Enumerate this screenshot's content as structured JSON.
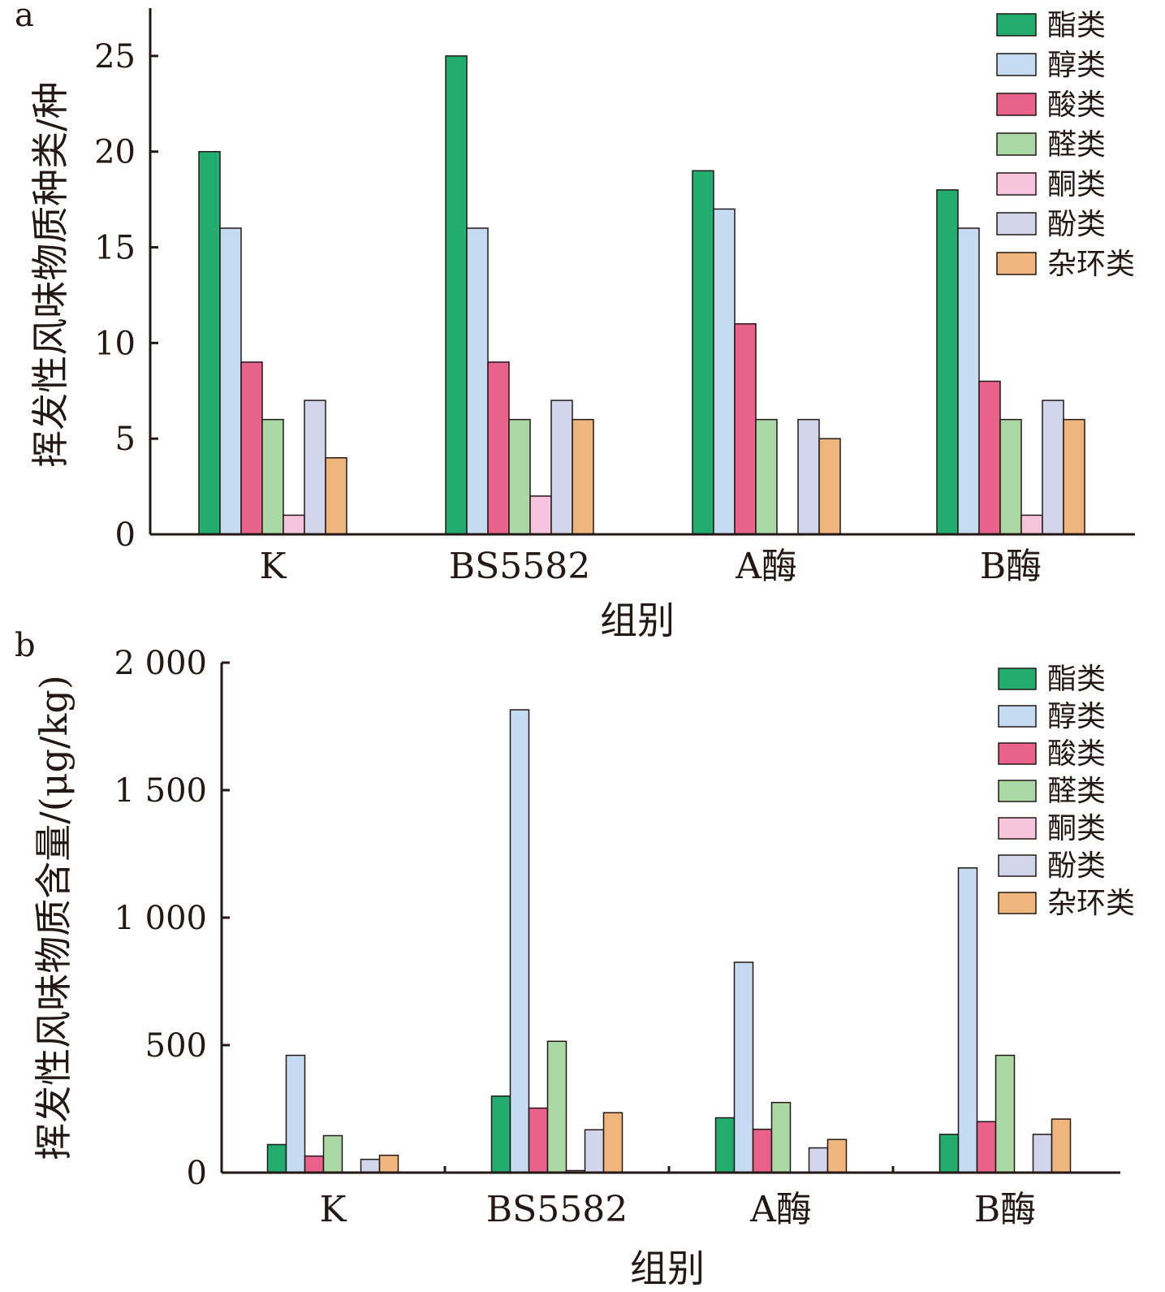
{
  "chart_data": [
    {
      "type": "bar",
      "panel_label": "a",
      "title": "",
      "xlabel": "组别",
      "ylabel": "挥发性风味物质种类/种",
      "categories": [
        "K",
        "BS5582",
        "A酶",
        "B酶"
      ],
      "ylim": [
        0,
        27.5
      ],
      "yticks": [
        0,
        5,
        10,
        15,
        20,
        25
      ],
      "ytick_labels": [
        "0",
        "5",
        "10",
        "15",
        "20",
        "25"
      ],
      "legend_position": "top-right",
      "series": [
        {
          "name": "酯类",
          "color": "#22ac6e",
          "values": [
            20,
            25,
            19,
            18
          ]
        },
        {
          "name": "醇类",
          "color": "#c5dbf1",
          "values": [
            16,
            16,
            17,
            16
          ]
        },
        {
          "name": "酸类",
          "color": "#e9628c",
          "values": [
            9,
            9,
            11,
            8
          ]
        },
        {
          "name": "醛类",
          "color": "#abd9a6",
          "values": [
            6,
            6,
            6,
            6
          ]
        },
        {
          "name": "酮类",
          "color": "#f6c4dc",
          "values": [
            1,
            2,
            0,
            1
          ]
        },
        {
          "name": "酚类",
          "color": "#d1d6ec",
          "values": [
            7,
            7,
            6,
            7
          ]
        },
        {
          "name": "杂环类",
          "color": "#eeb57d",
          "values": [
            4,
            6,
            5,
            6
          ]
        }
      ]
    },
    {
      "type": "bar",
      "panel_label": "b",
      "title": "",
      "xlabel": "组别",
      "ylabel": "挥发性风味物质含量/(μg/kg)",
      "categories": [
        "K",
        "BS5582",
        "A酶",
        "B酶"
      ],
      "ylim": [
        0,
        2000
      ],
      "yticks": [
        0,
        500,
        1000,
        1500,
        2000
      ],
      "ytick_labels": [
        "0",
        "500",
        "1 000",
        "1 500",
        "2 000"
      ],
      "legend_position": "top-right",
      "series": [
        {
          "name": "酯类",
          "color": "#22ac6e",
          "values": [
            110,
            300,
            215,
            150
          ]
        },
        {
          "name": "醇类",
          "color": "#c5dbf1",
          "values": [
            460,
            1815,
            825,
            1195
          ]
        },
        {
          "name": "酸类",
          "color": "#e9628c",
          "values": [
            65,
            253,
            170,
            200
          ]
        },
        {
          "name": "醛类",
          "color": "#abd9a6",
          "values": [
            145,
            515,
            275,
            460
          ]
        },
        {
          "name": "酮类",
          "color": "#f6c4dc",
          "values": [
            0,
            8,
            0,
            0
          ]
        },
        {
          "name": "酚类",
          "color": "#d1d6ec",
          "values": [
            52,
            168,
            97,
            150
          ]
        },
        {
          "name": "杂环类",
          "color": "#eeb57d",
          "values": [
            68,
            235,
            130,
            210
          ]
        }
      ]
    }
  ]
}
